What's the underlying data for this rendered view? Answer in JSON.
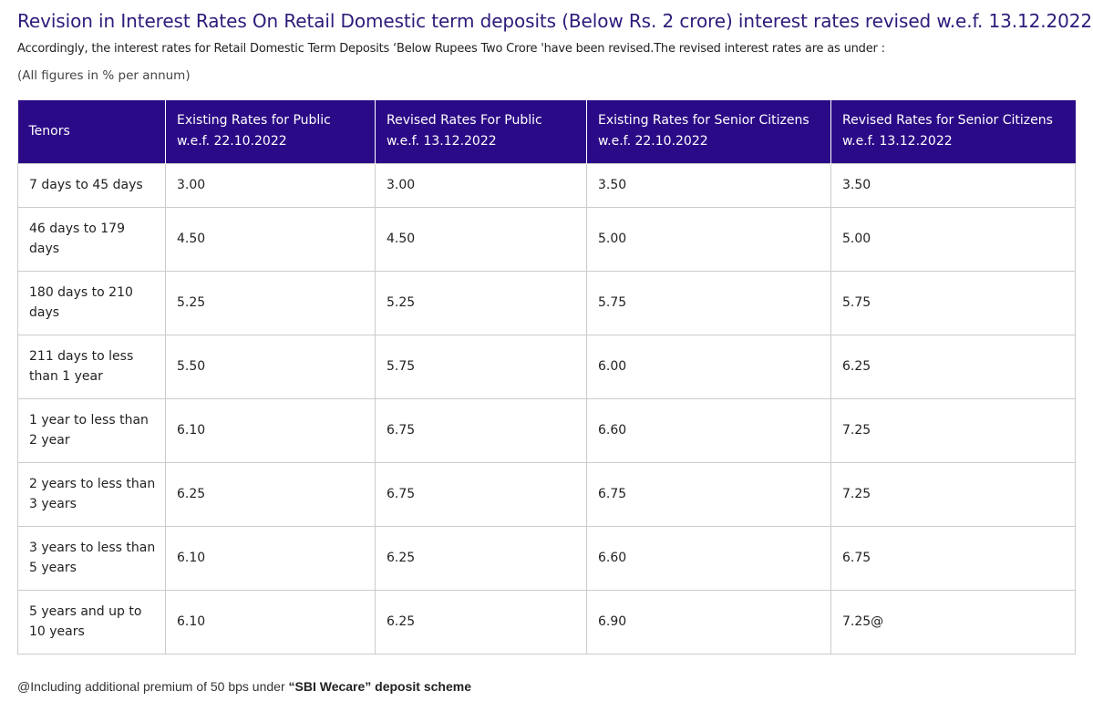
{
  "page": {
    "title": "Revision in Interest Rates On Retail Domestic term deposits (Below Rs. 2 crore) interest rates revised w.e.f. 13.12.2022",
    "intro": "Accordingly, the interest rates for Retail Domestic Term Deposits ‘Below Rupees Two Crore 'have been revised.The revised interest rates are as under :",
    "units_note": "(All figures in % per annum)"
  },
  "table": {
    "headers": [
      {
        "line1": "Tenors",
        "line2": ""
      },
      {
        "line1": "Existing Rates for Public",
        "line2": "w.e.f. 22.10.2022"
      },
      {
        "line1": "Revised Rates For Public",
        "line2": "w.e.f. 13.12.2022"
      },
      {
        "line1": "Existing Rates for Senior Citizens",
        "line2": "w.e.f. 22.10.2022"
      },
      {
        "line1": "Revised Rates for Senior Citizens",
        "line2": "w.e.f. 13.12.2022"
      }
    ],
    "rows": [
      {
        "tenor": "7 days to 45 days",
        "existing_public": "3.00",
        "revised_public": "3.00",
        "existing_senior": "3.50",
        "revised_senior": "3.50"
      },
      {
        "tenor": "46 days to 179 days",
        "existing_public": "4.50",
        "revised_public": "4.50",
        "existing_senior": "5.00",
        "revised_senior": "5.00"
      },
      {
        "tenor": "180 days to 210 days",
        "existing_public": "5.25",
        "revised_public": "5.25",
        "existing_senior": "5.75",
        "revised_senior": "5.75"
      },
      {
        "tenor": "211 days to less than 1 year",
        "existing_public": "5.50",
        "revised_public": "5.75",
        "existing_senior": "6.00",
        "revised_senior": "6.25"
      },
      {
        "tenor": "1 year to less than 2 year",
        "existing_public": "6.10",
        "revised_public": "6.75",
        "existing_senior": "6.60",
        "revised_senior": "7.25"
      },
      {
        "tenor": "2 years to less than 3 years",
        "existing_public": "6.25",
        "revised_public": "6.75",
        "existing_senior": "6.75",
        "revised_senior": "7.25"
      },
      {
        "tenor": "3 years to less than 5 years",
        "existing_public": "6.10",
        "revised_public": "6.25",
        "existing_senior": "6.60",
        "revised_senior": "6.75"
      },
      {
        "tenor": "5 years and up to 10 years",
        "existing_public": "6.10",
        "revised_public": "6.25",
        "existing_senior": "6.90",
        "revised_senior": "7.25@"
      }
    ]
  },
  "footnote": {
    "prefix": "@Including additional premium of 50 bps under ",
    "scheme": "“SBI Wecare” deposit scheme"
  },
  "colors": {
    "title": "#2e1a7a",
    "header_bg": "#2b0a87",
    "header_text": "#ffffff",
    "border": "#cccccc"
  }
}
